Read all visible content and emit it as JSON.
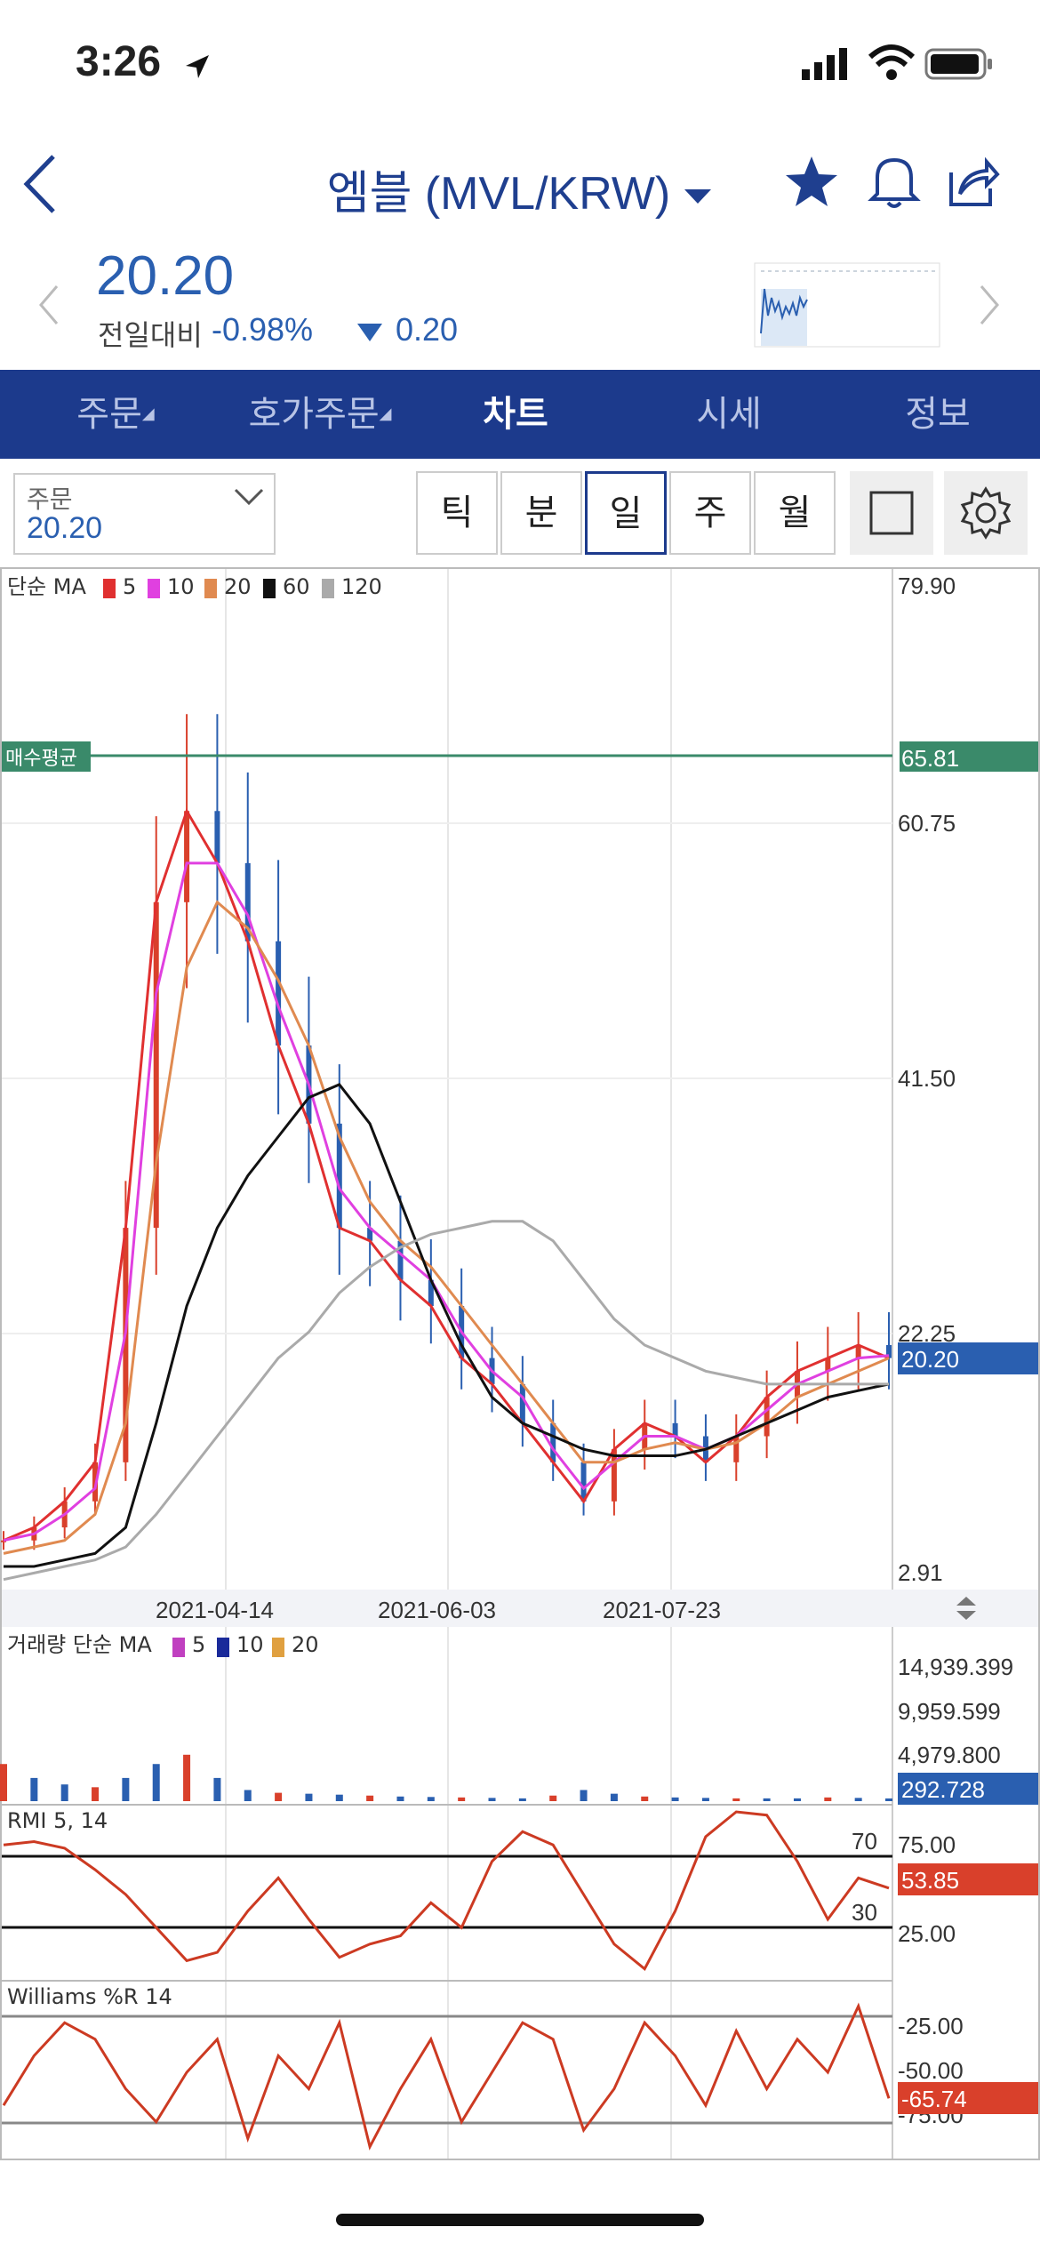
{
  "status": {
    "time": "3:26"
  },
  "header": {
    "title": "엠블 (MVL/KRW)",
    "price": "20.20",
    "change_label": "전일대비",
    "change_pct": "-0.98%",
    "change_abs": "0.20"
  },
  "tabs": [
    {
      "label": "주문"
    },
    {
      "label": "호가주문"
    },
    {
      "label": "차트"
    },
    {
      "label": "시세"
    },
    {
      "label": "정보"
    }
  ],
  "order": {
    "label": "주문",
    "value": "20.20"
  },
  "periods": [
    "틱",
    "분",
    "일",
    "주",
    "월"
  ],
  "selected_period": "일",
  "colors": {
    "accent": "#1c3a8c",
    "up": "#d9402b",
    "down": "#2a5fb0",
    "avg_line": "#3a8a6a",
    "ma5": "#e03030",
    "ma10": "#e040e0",
    "ma20": "#e08a50",
    "ma60": "#111111",
    "ma120": "#aaaaaa"
  },
  "price_panel": {
    "legend": {
      "title": "단순 MA",
      "periods": [
        "5",
        "10",
        "20",
        "60",
        "120"
      ]
    },
    "y_ticks": [
      "79.90",
      "60.75",
      "41.50",
      "22.25",
      "2.91"
    ],
    "avg_label": "매수평균",
    "avg_value": "65.81",
    "current_value": "20.20",
    "x_ticks": [
      "2021-04-14",
      "2021-06-03",
      "2021-07-23"
    ]
  },
  "volume_panel": {
    "legend": {
      "title": "거래량 단순 MA",
      "periods": [
        "5",
        "10",
        "20"
      ]
    },
    "y_ticks": [
      "14,939.399",
      "9,959.599",
      "4,979.800"
    ],
    "current_value": "292.728"
  },
  "rmi_panel": {
    "title": "RMI 5, 14",
    "y_ticks": [
      "75.00",
      "25.00"
    ],
    "level_high": "70",
    "level_low": "30",
    "current_value": "53.85"
  },
  "williams_panel": {
    "title": "Williams %R 14",
    "y_ticks": [
      "-25.00",
      "-50.00",
      "-75.00"
    ],
    "current_value": "-65.74"
  },
  "chart_data": [
    {
      "type": "line",
      "title": "",
      "legend": [
        "5",
        "10",
        "20",
        "60",
        "120"
      ],
      "x_labels": [
        "2021-04-14",
        "2021-06-03",
        "2021-07-23"
      ],
      "ylim": [
        2.91,
        79.9
      ],
      "series": [
        {
          "name": "5",
          "values": [
            6,
            7,
            9,
            12,
            30,
            55,
            62,
            58,
            52,
            44,
            38,
            30,
            29,
            26,
            24,
            20,
            18,
            15,
            12,
            9,
            13,
            15,
            14,
            12,
            14,
            17,
            19,
            20,
            21,
            20
          ]
        },
        {
          "name": "10",
          "values": [
            6,
            6.5,
            8,
            10,
            22,
            48,
            58,
            58,
            54,
            47,
            41,
            33,
            30,
            28,
            26,
            22,
            19,
            17,
            13,
            10,
            12,
            14,
            14,
            13,
            14,
            16,
            18,
            19,
            20,
            20.2
          ]
        },
        {
          "name": "20",
          "values": [
            5,
            5.5,
            6,
            8,
            15,
            35,
            50,
            55,
            53,
            49,
            44,
            37,
            32,
            29,
            27,
            24,
            21,
            18,
            15,
            12,
            12,
            13,
            13.5,
            13,
            13.5,
            15,
            17,
            18,
            19,
            20
          ]
        },
        {
          "name": "60",
          "values": [
            4,
            4,
            4.5,
            5,
            7,
            15,
            24,
            30,
            34,
            37,
            40,
            41,
            38,
            32,
            26,
            21,
            17,
            15,
            14,
            13,
            12.5,
            12.5,
            12.5,
            13,
            14,
            15,
            16,
            17,
            17.5,
            18
          ]
        },
        {
          "name": "120",
          "values": [
            3,
            3.5,
            4,
            4.5,
            5.5,
            8,
            11,
            14,
            17,
            20,
            22,
            25,
            27,
            28.5,
            29.5,
            30,
            30.5,
            30.5,
            29,
            26,
            23,
            21,
            20,
            19,
            18.5,
            18,
            18,
            18,
            18,
            18
          ]
        }
      ]
    },
    {
      "type": "bar",
      "title": "거래량",
      "ylim": [
        0,
        14939.399
      ],
      "values": [
        4000,
        2500,
        1800,
        1500,
        2500,
        4000,
        5000,
        2500,
        1200,
        900,
        800,
        700,
        600,
        500,
        450,
        400,
        350,
        300,
        600,
        1200,
        800,
        500,
        400,
        350,
        300,
        300,
        300,
        400,
        350,
        292.728
      ]
    },
    {
      "type": "line",
      "title": "RMI 5, 14",
      "ylim": [
        0,
        100
      ],
      "values": [
        80,
        82,
        78,
        65,
        50,
        30,
        10,
        15,
        40,
        60,
        35,
        12,
        20,
        25,
        45,
        30,
        70,
        88,
        80,
        50,
        20,
        5,
        40,
        85,
        100,
        98,
        70,
        35,
        60,
        53.85
      ]
    },
    {
      "type": "line",
      "title": "Williams %R 14",
      "ylim": [
        -100,
        0
      ],
      "values": [
        -70,
        -40,
        -20,
        -30,
        -60,
        -80,
        -50,
        -30,
        -90,
        -40,
        -60,
        -20,
        -95,
        -60,
        -30,
        -80,
        -50,
        -20,
        -30,
        -85,
        -60,
        -20,
        -40,
        -70,
        -25,
        -60,
        -30,
        -50,
        -10,
        -65.74
      ]
    }
  ]
}
